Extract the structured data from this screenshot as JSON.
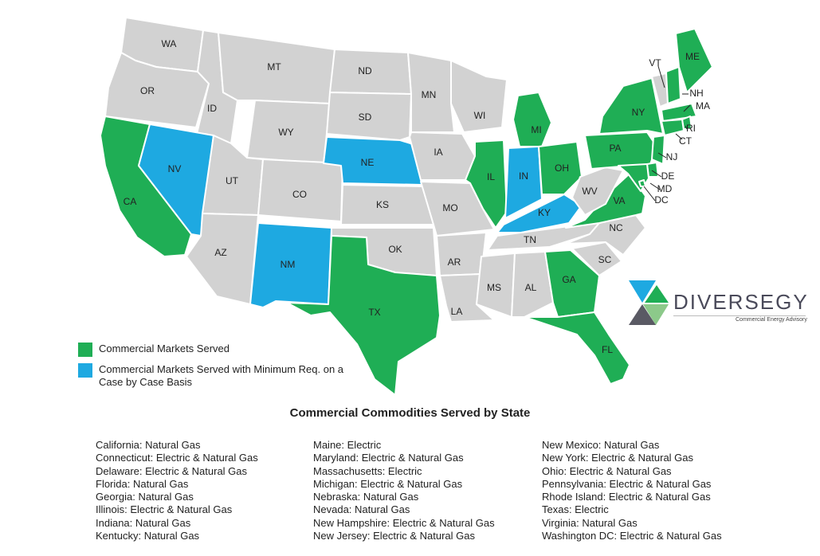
{
  "colors": {
    "served": "#1fae55",
    "min_req": "#1ea9e1",
    "not_served": "#d2d2d2",
    "border": "#ffffff"
  },
  "map": {
    "states": [
      {
        "abbr": "WA",
        "status": "none"
      },
      {
        "abbr": "OR",
        "status": "none"
      },
      {
        "abbr": "CA",
        "status": "served"
      },
      {
        "abbr": "ID",
        "status": "none"
      },
      {
        "abbr": "NV",
        "status": "min_req"
      },
      {
        "abbr": "MT",
        "status": "none"
      },
      {
        "abbr": "WY",
        "status": "none"
      },
      {
        "abbr": "UT",
        "status": "none"
      },
      {
        "abbr": "AZ",
        "status": "none"
      },
      {
        "abbr": "CO",
        "status": "none"
      },
      {
        "abbr": "NM",
        "status": "min_req"
      },
      {
        "abbr": "ND",
        "status": "none"
      },
      {
        "abbr": "SD",
        "status": "none"
      },
      {
        "abbr": "NE",
        "status": "min_req"
      },
      {
        "abbr": "KS",
        "status": "none"
      },
      {
        "abbr": "OK",
        "status": "none"
      },
      {
        "abbr": "TX",
        "status": "served"
      },
      {
        "abbr": "MN",
        "status": "none"
      },
      {
        "abbr": "IA",
        "status": "none"
      },
      {
        "abbr": "MO",
        "status": "none"
      },
      {
        "abbr": "AR",
        "status": "none"
      },
      {
        "abbr": "LA",
        "status": "none"
      },
      {
        "abbr": "WI",
        "status": "none"
      },
      {
        "abbr": "IL",
        "status": "served"
      },
      {
        "abbr": "MI",
        "status": "served"
      },
      {
        "abbr": "IN",
        "status": "min_req"
      },
      {
        "abbr": "OH",
        "status": "served"
      },
      {
        "abbr": "KY",
        "status": "min_req"
      },
      {
        "abbr": "TN",
        "status": "none"
      },
      {
        "abbr": "MS",
        "status": "none"
      },
      {
        "abbr": "AL",
        "status": "none"
      },
      {
        "abbr": "GA",
        "status": "served"
      },
      {
        "abbr": "FL",
        "status": "served"
      },
      {
        "abbr": "SC",
        "status": "none"
      },
      {
        "abbr": "NC",
        "status": "none"
      },
      {
        "abbr": "VA",
        "status": "served"
      },
      {
        "abbr": "WV",
        "status": "none"
      },
      {
        "abbr": "PA",
        "status": "served"
      },
      {
        "abbr": "NY",
        "status": "served"
      },
      {
        "abbr": "VT",
        "status": "none"
      },
      {
        "abbr": "NH",
        "status": "served"
      },
      {
        "abbr": "ME",
        "status": "served"
      },
      {
        "abbr": "MA",
        "status": "served"
      },
      {
        "abbr": "RI",
        "status": "served"
      },
      {
        "abbr": "CT",
        "status": "served"
      },
      {
        "abbr": "NJ",
        "status": "served"
      },
      {
        "abbr": "DE",
        "status": "served"
      },
      {
        "abbr": "MD",
        "status": "served"
      },
      {
        "abbr": "DC",
        "status": "served"
      }
    ]
  },
  "legend": {
    "served_label": "Commercial Markets Served",
    "min_req_label": "Commercial Markets Served with Minimum Req. on a Case by Case Basis"
  },
  "logo": {
    "wordmark": "DIVERSEGY",
    "tagline": "Commercial Energy Advisory"
  },
  "title": "Commercial Commodities Served by State",
  "commodities": {
    "column1": [
      "California: Natural Gas",
      "Connecticut: Electric & Natural Gas",
      "Delaware: Electric & Natural Gas",
      "Florida: Natural Gas",
      "Georgia: Natural Gas",
      "Illinois: Electric & Natural Gas",
      "Indiana: Natural Gas",
      "Kentucky: Natural Gas"
    ],
    "column2": [
      "Maine: Electric",
      "Maryland: Electric & Natural Gas",
      "Massachusetts: Electric",
      "Michigan: Electric & Natural Gas",
      "Nebraska: Natural Gas",
      "Nevada: Natural Gas",
      "New Hampshire: Electric & Natural Gas",
      "New Jersey: Electric & Natural Gas"
    ],
    "column3": [
      "New Mexico: Natural Gas",
      "New York: Electric & Natural Gas",
      "Ohio: Electric & Natural Gas",
      "Pennsylvania: Electric & Natural Gas",
      "Rhode Island: Electric & Natural Gas",
      "Texas: Electric",
      "Virginia: Natural Gas",
      "Washington DC: Electric & Natural Gas"
    ]
  }
}
